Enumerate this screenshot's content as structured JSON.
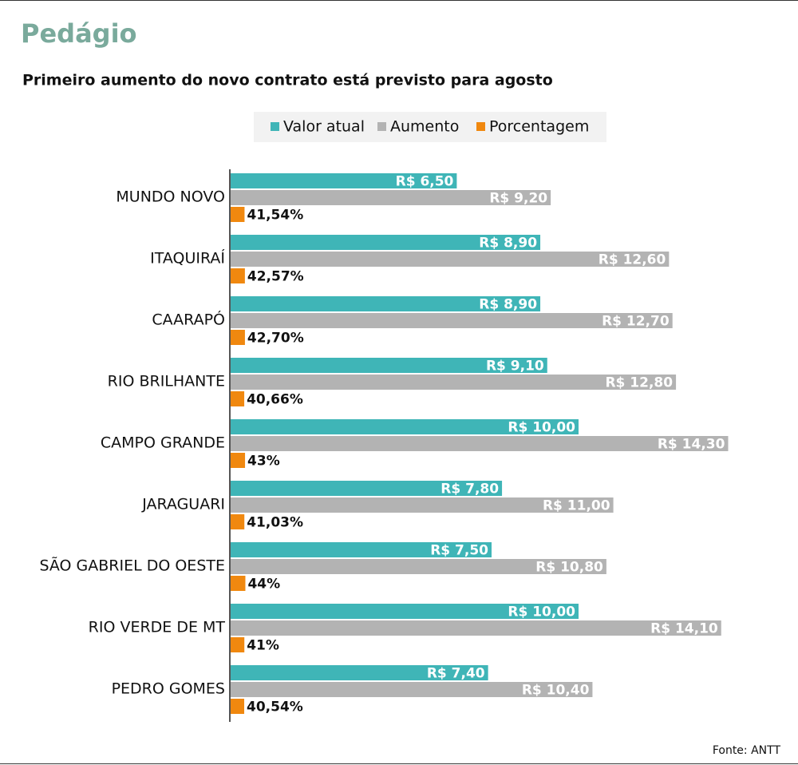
{
  "chart_data": {
    "type": "bar",
    "orientation": "horizontal",
    "title": "Pedágio",
    "subtitle": "Primeiro aumento do novo contrato está previsto para agosto",
    "source": "Fonte: ANTT",
    "categories": [
      "MUNDO NOVO",
      "ITAQUIRAÍ",
      "CAARAPÓ",
      "RIO BRILHANTE",
      "CAMPO GRANDE",
      "JARAGUARI",
      "SÃO GABRIEL DO OESTE",
      "RIO VERDE DE MT",
      "PEDRO GOMES"
    ],
    "series": [
      {
        "name": "Valor atual",
        "color": "#3fb5b7",
        "values": [
          6.5,
          8.9,
          8.9,
          9.1,
          10.0,
          7.8,
          7.5,
          10.0,
          7.4
        ],
        "value_labels": [
          "R$ 6,50",
          "R$ 8,90",
          "R$ 8,90",
          "R$ 9,10",
          "R$ 10,00",
          "R$ 7,80",
          "R$ 7,50",
          "R$ 10,00",
          "R$ 7,40"
        ]
      },
      {
        "name": "Aumento",
        "color": "#b3b3b3",
        "values": [
          9.2,
          12.6,
          12.7,
          12.8,
          14.3,
          11.0,
          10.8,
          14.1,
          10.4
        ],
        "value_labels": [
          "R$ 9,20",
          "R$ 12,60",
          "R$ 12,70",
          "R$ 12,80",
          "R$ 14,30",
          "R$ 11,00",
          "R$ 10,80",
          "R$ 14,10",
          "R$ 10,40"
        ]
      },
      {
        "name": "Porcentagem",
        "color": "#f0880f",
        "axis": "y2",
        "values": [
          41.54,
          42.57,
          42.7,
          40.66,
          43,
          41.03,
          44,
          41,
          40.54
        ],
        "value_labels": [
          "41,54%",
          "42,57%",
          "42,70%",
          "40,66%",
          "43%",
          "41,03%",
          "44%",
          "41%",
          "40,54%"
        ]
      }
    ],
    "legend": "top"
  }
}
